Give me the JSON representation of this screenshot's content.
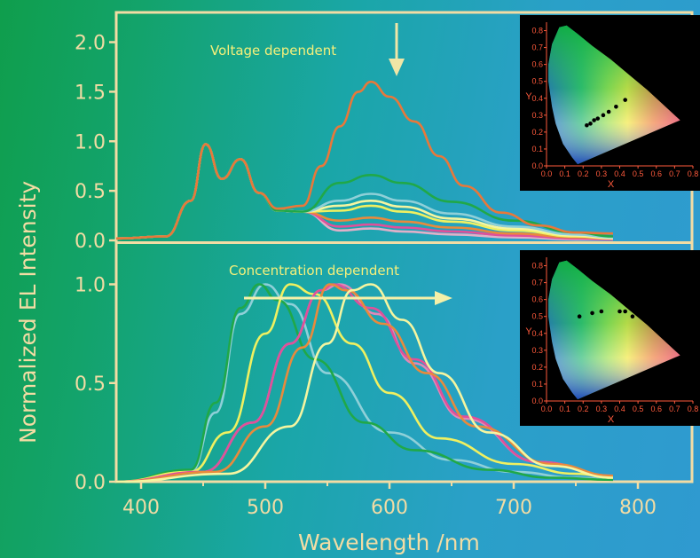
{
  "colors": {
    "axis": "#f2dca4",
    "annotation": "#f6f07a",
    "arrow_top": "#f0e6a6",
    "arrow_bottom": "#f5f0a8",
    "inset_bg": "#000000",
    "inset_axis": "#ff5a3c",
    "inset_points": "#000000"
  },
  "chart_data": [
    {
      "type": "line",
      "panel": "top",
      "title": "",
      "annotation": "Voltage dependent",
      "ylabel": "Normalized EL Intensity",
      "xlabel": "Wavelength /nm",
      "xlim": [
        380,
        850
      ],
      "ylim": [
        0,
        2.3
      ],
      "yticks": [
        "0.0",
        "0.5",
        "1.0",
        "1.5",
        "2.0"
      ],
      "ytick_values": [
        0,
        0.5,
        1.0,
        1.5,
        2.0
      ],
      "series": [
        {
          "color": "#e0b0c8",
          "x": [
            380,
            420,
            440,
            452,
            465,
            480,
            495,
            510,
            530,
            560,
            585,
            610,
            650,
            700,
            750,
            780
          ],
          "y": [
            0.02,
            0.04,
            0.4,
            0.97,
            0.62,
            0.82,
            0.48,
            0.3,
            0.29,
            0.1,
            0.12,
            0.09,
            0.06,
            0.03,
            0.01,
            0.01
          ]
        },
        {
          "color": "#e0509a",
          "x": [
            380,
            420,
            440,
            452,
            465,
            480,
            495,
            510,
            530,
            560,
            585,
            610,
            650,
            700,
            750,
            780
          ],
          "y": [
            0.02,
            0.04,
            0.4,
            0.97,
            0.62,
            0.82,
            0.48,
            0.3,
            0.29,
            0.14,
            0.16,
            0.13,
            0.09,
            0.05,
            0.02,
            0.01
          ]
        },
        {
          "color": "#e88a3c",
          "x": [
            380,
            420,
            440,
            452,
            465,
            480,
            495,
            510,
            530,
            560,
            585,
            610,
            650,
            700,
            750,
            780
          ],
          "y": [
            0.02,
            0.04,
            0.4,
            0.97,
            0.62,
            0.82,
            0.48,
            0.3,
            0.29,
            0.2,
            0.23,
            0.19,
            0.13,
            0.07,
            0.03,
            0.02
          ]
        },
        {
          "color": "#f0f060",
          "x": [
            380,
            420,
            440,
            452,
            465,
            480,
            495,
            510,
            530,
            560,
            585,
            610,
            650,
            700,
            750,
            780
          ],
          "y": [
            0.02,
            0.04,
            0.4,
            0.97,
            0.62,
            0.82,
            0.48,
            0.3,
            0.29,
            0.3,
            0.35,
            0.29,
            0.19,
            0.1,
            0.04,
            0.02
          ]
        },
        {
          "color": "#f5f5a0",
          "x": [
            380,
            420,
            440,
            452,
            465,
            480,
            495,
            510,
            530,
            560,
            585,
            610,
            650,
            700,
            750,
            780
          ],
          "y": [
            0.02,
            0.04,
            0.4,
            0.97,
            0.62,
            0.82,
            0.48,
            0.3,
            0.29,
            0.35,
            0.4,
            0.34,
            0.22,
            0.12,
            0.05,
            0.02
          ]
        },
        {
          "color": "#8fd0d8",
          "x": [
            380,
            420,
            440,
            452,
            465,
            480,
            495,
            510,
            530,
            560,
            585,
            610,
            650,
            700,
            750,
            780
          ],
          "y": [
            0.02,
            0.04,
            0.4,
            0.97,
            0.62,
            0.82,
            0.48,
            0.3,
            0.29,
            0.4,
            0.47,
            0.4,
            0.27,
            0.14,
            0.06,
            0.03
          ]
        },
        {
          "color": "#20a848",
          "x": [
            380,
            420,
            440,
            452,
            465,
            480,
            495,
            510,
            530,
            560,
            585,
            610,
            650,
            700,
            750,
            780
          ],
          "y": [
            0.02,
            0.04,
            0.4,
            0.97,
            0.62,
            0.82,
            0.48,
            0.3,
            0.29,
            0.58,
            0.66,
            0.58,
            0.39,
            0.2,
            0.08,
            0.04
          ]
        },
        {
          "color": "#e8783a",
          "x": [
            380,
            420,
            440,
            452,
            465,
            480,
            495,
            510,
            530,
            545,
            560,
            575,
            585,
            600,
            620,
            640,
            660,
            690,
            720,
            750,
            780
          ],
          "y": [
            0.02,
            0.04,
            0.4,
            0.97,
            0.62,
            0.82,
            0.48,
            0.32,
            0.35,
            0.75,
            1.15,
            1.5,
            1.6,
            1.45,
            1.2,
            0.85,
            0.55,
            0.28,
            0.15,
            0.08,
            0.07
          ]
        }
      ],
      "inset": {
        "xlabel": "X",
        "ylabel": "Y",
        "xticks": [
          "0.0",
          "0.1",
          "0.2",
          "0.3",
          "0.4",
          "0.5",
          "0.6",
          "0.7",
          "0.8"
        ],
        "yticks": [
          "0.0",
          "0.1",
          "0.2",
          "0.3",
          "0.4",
          "0.5",
          "0.6",
          "0.7",
          "0.8"
        ],
        "points": [
          [
            0.22,
            0.24
          ],
          [
            0.24,
            0.25
          ],
          [
            0.26,
            0.27
          ],
          [
            0.28,
            0.28
          ],
          [
            0.31,
            0.3
          ],
          [
            0.34,
            0.32
          ],
          [
            0.38,
            0.35
          ],
          [
            0.43,
            0.39
          ]
        ]
      }
    },
    {
      "type": "line",
      "panel": "bottom",
      "title": "",
      "annotation": "Concentration dependent",
      "xlabel": "Wavelength /nm",
      "xlim": [
        380,
        850
      ],
      "ylim": [
        0,
        1.2
      ],
      "xticks": [
        "400",
        "500",
        "600",
        "700",
        "800"
      ],
      "xtick_values": [
        400,
        500,
        600,
        700,
        800
      ],
      "yticks": [
        "0.0",
        "0.5",
        "1.0"
      ],
      "ytick_values": [
        0,
        0.5,
        1.0
      ],
      "series": [
        {
          "color": "#8fd0d8",
          "x": [
            380,
            440,
            460,
            480,
            500,
            520,
            550,
            600,
            650,
            700,
            750,
            780
          ],
          "y": [
            0.0,
            0.05,
            0.35,
            0.85,
            1.0,
            0.9,
            0.55,
            0.25,
            0.11,
            0.05,
            0.02,
            0.01
          ]
        },
        {
          "color": "#20a848",
          "x": [
            380,
            440,
            460,
            480,
            495,
            510,
            540,
            580,
            620,
            680,
            730,
            780
          ],
          "y": [
            0.0,
            0.06,
            0.4,
            0.88,
            1.0,
            0.92,
            0.62,
            0.3,
            0.16,
            0.06,
            0.02,
            0.01
          ]
        },
        {
          "color": "#f0f060",
          "x": [
            380,
            440,
            470,
            500,
            520,
            540,
            570,
            600,
            640,
            700,
            750,
            780
          ],
          "y": [
            0.0,
            0.05,
            0.25,
            0.75,
            1.0,
            0.95,
            0.7,
            0.45,
            0.22,
            0.09,
            0.04,
            0.02
          ]
        },
        {
          "color": "#e088b8",
          "x": [
            380,
            450,
            490,
            520,
            545,
            560,
            590,
            620,
            660,
            720,
            780
          ],
          "y": [
            0.0,
            0.05,
            0.3,
            0.7,
            0.97,
            1.0,
            0.85,
            0.6,
            0.32,
            0.1,
            0.03
          ]
        },
        {
          "color": "#e0509a",
          "x": [
            380,
            450,
            490,
            520,
            545,
            555,
            585,
            620,
            660,
            720,
            780
          ],
          "y": [
            0.0,
            0.05,
            0.3,
            0.7,
            0.97,
            1.0,
            0.88,
            0.62,
            0.33,
            0.1,
            0.03
          ]
        },
        {
          "color": "#e88a3c",
          "x": [
            380,
            460,
            500,
            530,
            552,
            565,
            595,
            630,
            670,
            730,
            780
          ],
          "y": [
            0.0,
            0.05,
            0.28,
            0.68,
            1.0,
            0.97,
            0.8,
            0.55,
            0.28,
            0.09,
            0.03
          ]
        },
        {
          "color": "#f5f5a0",
          "x": [
            380,
            470,
            520,
            550,
            570,
            585,
            610,
            640,
            680,
            730,
            780
          ],
          "y": [
            0.0,
            0.04,
            0.28,
            0.7,
            0.97,
            1.0,
            0.82,
            0.55,
            0.25,
            0.08,
            0.02
          ]
        }
      ],
      "inset": {
        "xlabel": "X",
        "ylabel": "Y",
        "xticks": [
          "0.0",
          "0.1",
          "0.2",
          "0.3",
          "0.4",
          "0.5",
          "0.6",
          "0.7",
          "0.8"
        ],
        "yticks": [
          "0.0",
          "0.1",
          "0.2",
          "0.3",
          "0.4",
          "0.5",
          "0.6",
          "0.7",
          "0.8"
        ],
        "points": [
          [
            0.18,
            0.5
          ],
          [
            0.25,
            0.52
          ],
          [
            0.3,
            0.53
          ],
          [
            0.4,
            0.53
          ],
          [
            0.43,
            0.53
          ],
          [
            0.47,
            0.5
          ]
        ]
      }
    }
  ]
}
